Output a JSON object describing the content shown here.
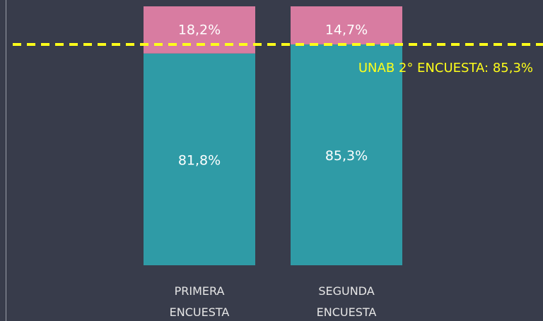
{
  "chart_data": {
    "type": "stacked_bar",
    "categories": [
      "PRIMERA ENCUESTA",
      "SEGUNDA ENCUESTA"
    ],
    "series": [
      {
        "color": "#2f9ba6",
        "values": [
          81.8,
          85.3
        ],
        "value_labels": [
          "81,8%",
          "85,3%"
        ]
      },
      {
        "color": "#d87ca1",
        "values": [
          18.2,
          14.7
        ],
        "value_labels": [
          "18,2%",
          "14,7%"
        ]
      }
    ],
    "ylim": [
      0,
      100
    ],
    "reference_line": {
      "value": 85.3,
      "label": "UNAB 2° ENCUESTA: 85,3%",
      "color": "#ffff1a"
    }
  }
}
